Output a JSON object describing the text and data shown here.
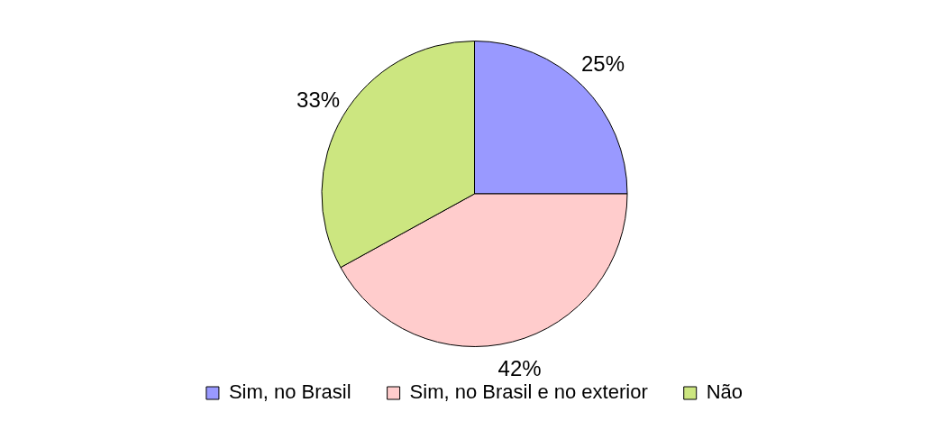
{
  "chart_data": {
    "type": "pie",
    "categories": [
      "Sim, no Brasil",
      "Sim, no Brasil e no exterior",
      "Não"
    ],
    "values": [
      25,
      42,
      33
    ],
    "value_labels": [
      "25%",
      "42%",
      "33%"
    ],
    "colors": [
      "#9999ff",
      "#ffcccc",
      "#cce680"
    ],
    "legend": "bottom"
  }
}
